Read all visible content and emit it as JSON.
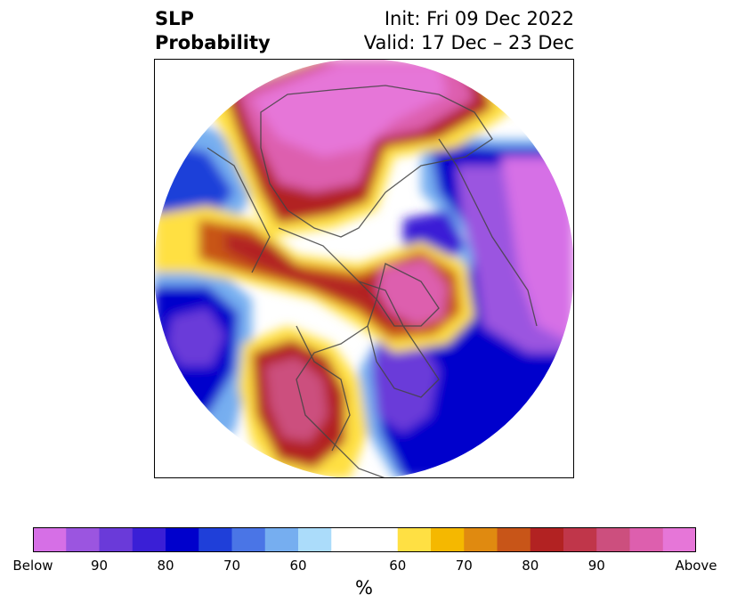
{
  "title": {
    "line1": "SLP",
    "line2": "Probability",
    "init": "Init: Fri 09 Dec 2022",
    "valid": "Valid: 17 Dec – 23 Dec"
  },
  "colorbar": {
    "colors": [
      "#d66fe6",
      "#9b55e0",
      "#6a3ad9",
      "#3a1fd6",
      "#0000cc",
      "#1f3fd9",
      "#4a75e6",
      "#76aef0",
      "#abdcfa",
      "#ffffff",
      "#ffe043",
      "#f5b800",
      "#e08a10",
      "#c85518",
      "#b22222",
      "#c0364a",
      "#cc4f7e",
      "#dd5fae",
      "#e676d8"
    ],
    "tick_labels": [
      "Below",
      "90",
      "80",
      "70",
      "60",
      "60",
      "70",
      "80",
      "90",
      "Above"
    ],
    "units": "%"
  }
}
